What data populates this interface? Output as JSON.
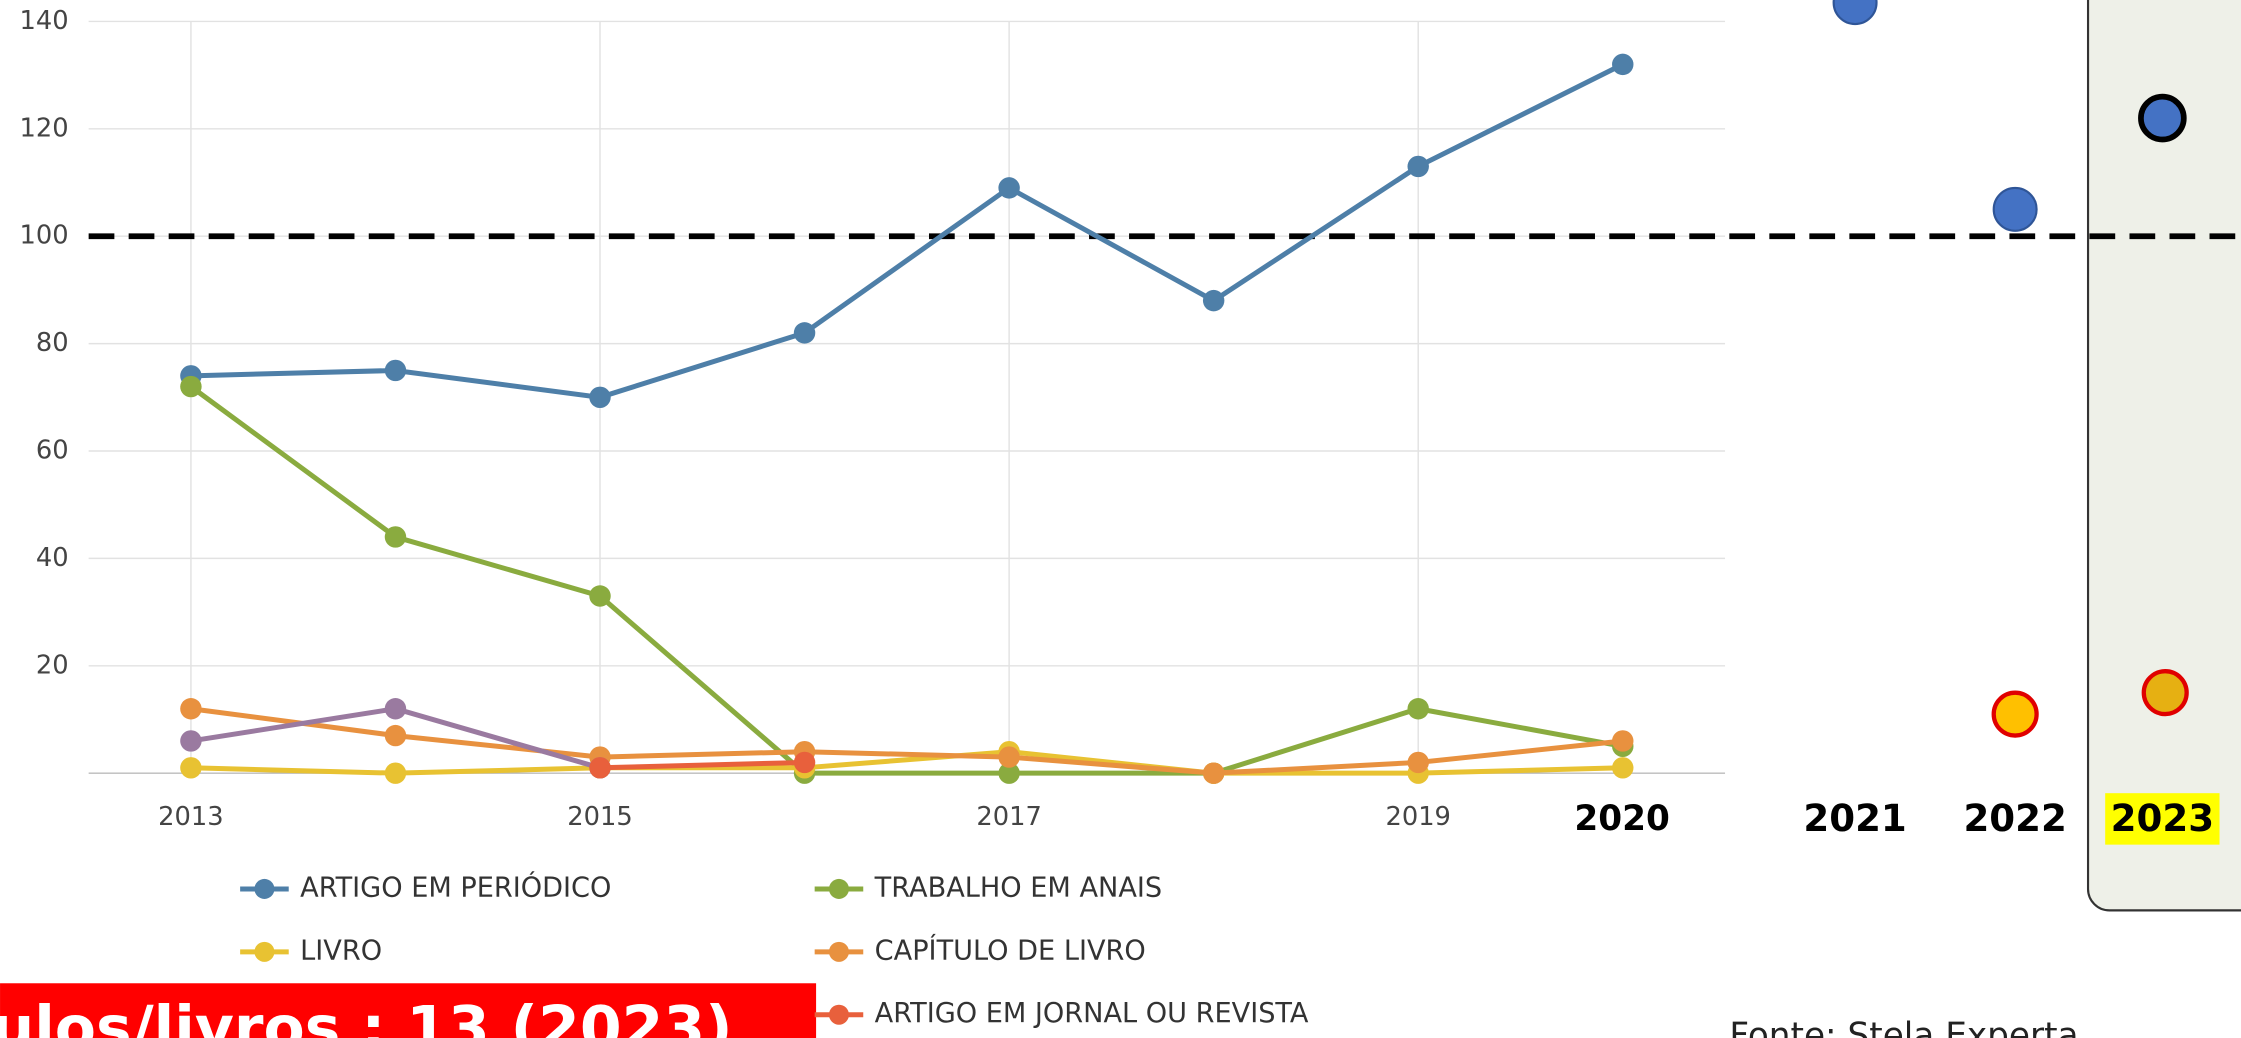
{
  "chart_data": {
    "type": "line",
    "x": [
      2013,
      2014,
      2015,
      2016,
      2017,
      2018,
      2019,
      2020
    ],
    "xlim": [
      2012.5,
      2020.5
    ],
    "xticks": [
      2013,
      2015,
      2017,
      2019
    ],
    "ylim": [
      0,
      140
    ],
    "yticks": [
      20,
      40,
      60,
      80,
      100,
      120,
      140
    ],
    "grid": true,
    "series": [
      {
        "name": "ARTIGO EM PERIÓDICO",
        "color": "#4e7fa8",
        "values": [
          74,
          75,
          70,
          82,
          109,
          88,
          113,
          132
        ]
      },
      {
        "name": "TRABALHO EM ANAIS",
        "color": "#8aab3f",
        "values": [
          72,
          44,
          33,
          0,
          0,
          0,
          12,
          5
        ]
      },
      {
        "name": "LIVRO",
        "color": "#e8c232",
        "values": [
          1,
          0,
          1,
          1,
          4,
          0,
          0,
          1
        ]
      },
      {
        "name": "CAPÍTULO DE LIVRO",
        "color": "#e8913f",
        "values": [
          12,
          7,
          3,
          4,
          3,
          0,
          2,
          6
        ]
      },
      {
        "color": "#9a7aa0",
        "values": [
          6,
          12,
          1,
          null,
          null,
          null,
          null,
          null
        ]
      },
      {
        "name": "ARTIGO EM JORNAL OU REVISTA",
        "color": "#e8603c",
        "values": [
          null,
          null,
          1,
          2,
          null,
          null,
          null,
          null
        ]
      }
    ],
    "highlight_year": "2020",
    "reference_line": 100,
    "projections": [
      {
        "year": "2021",
        "points": [
          {
            "value": 143.5,
            "color": "#4472c4"
          }
        ]
      },
      {
        "year": "2022",
        "points": [
          {
            "value": 105,
            "color": "#4472c4"
          },
          {
            "value": 11,
            "color": "#ffc000"
          }
        ]
      },
      {
        "year": "2023",
        "points": [
          {
            "value": 122,
            "color": "#4472c4"
          },
          {
            "value": 15,
            "color": "#e6b012"
          }
        ]
      }
    ],
    "banner": "ulos/livros : 13 (2023)",
    "source": "Fonte: Stela Experta"
  }
}
